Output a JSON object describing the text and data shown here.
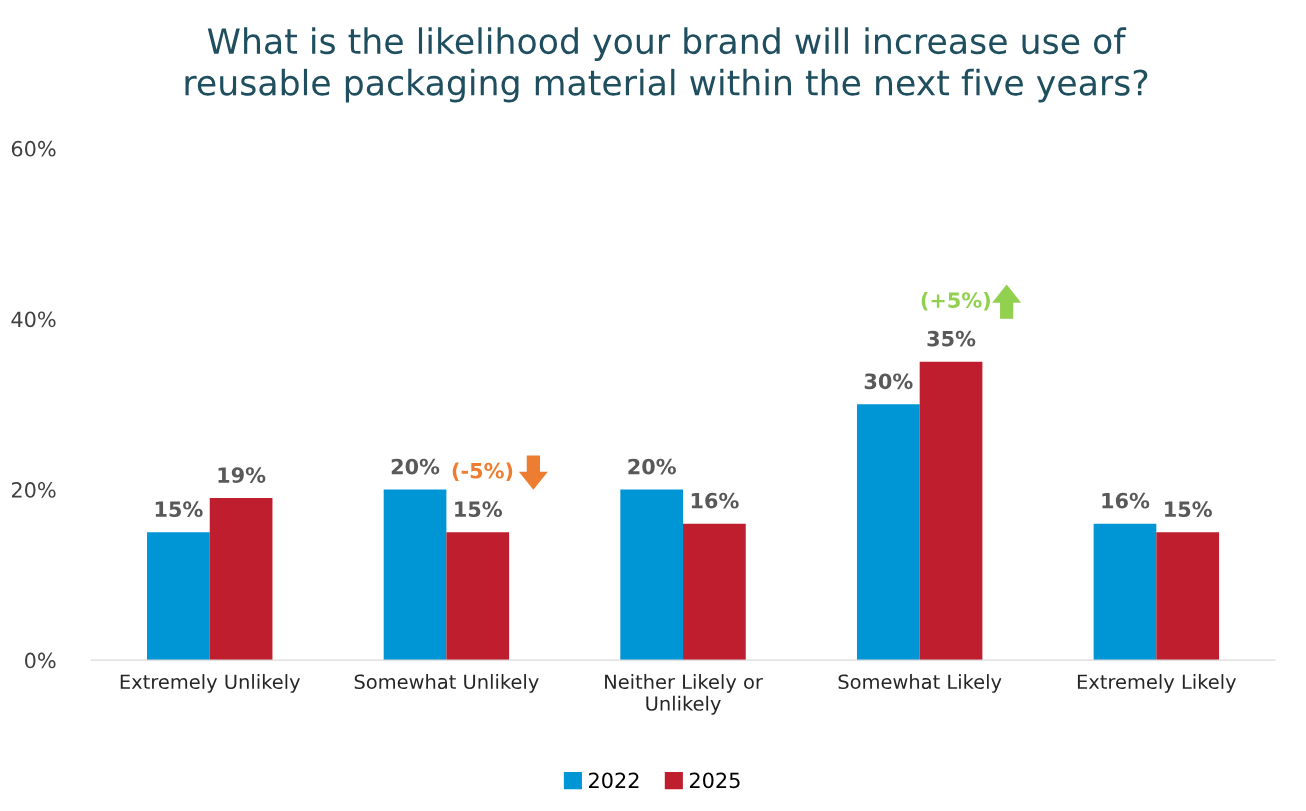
{
  "chart_data": {
    "type": "bar",
    "title": "What is the likelihood your brand will increase use of\nreusable packaging material within the next five years?",
    "categories": [
      "Extremely Unlikely",
      "Somewhat Unlikely",
      "Neither Likely or\nUnlikely",
      "Somewhat Likely",
      "Extremely Likely"
    ],
    "series": [
      {
        "name": "2022",
        "color": "#0096d6",
        "values": [
          15,
          20,
          20,
          30,
          16
        ],
        "value_labels": [
          "15%",
          "20%",
          "20%",
          "30%",
          "16%"
        ]
      },
      {
        "name": "2025",
        "color": "#be1e2d",
        "values": [
          19,
          15,
          16,
          35,
          15
        ],
        "value_labels": [
          "19%",
          "15%",
          "16%",
          "35%",
          "15%"
        ]
      }
    ],
    "ylim": [
      0,
      60
    ],
    "yticks": [
      {
        "value": 0,
        "label": "0%"
      },
      {
        "value": 20,
        "label": "20%"
      },
      {
        "value": 40,
        "label": "40%"
      },
      {
        "value": 60,
        "label": "60%"
      }
    ],
    "annotations": [
      {
        "text": "(-5%)",
        "x": "Somewhat Unlikely",
        "y": 15
      },
      {
        "text": "(+5%)",
        "x": "Somewhat Likely",
        "y": 35
      }
    ],
    "grid": false,
    "legend": "bottom"
  }
}
